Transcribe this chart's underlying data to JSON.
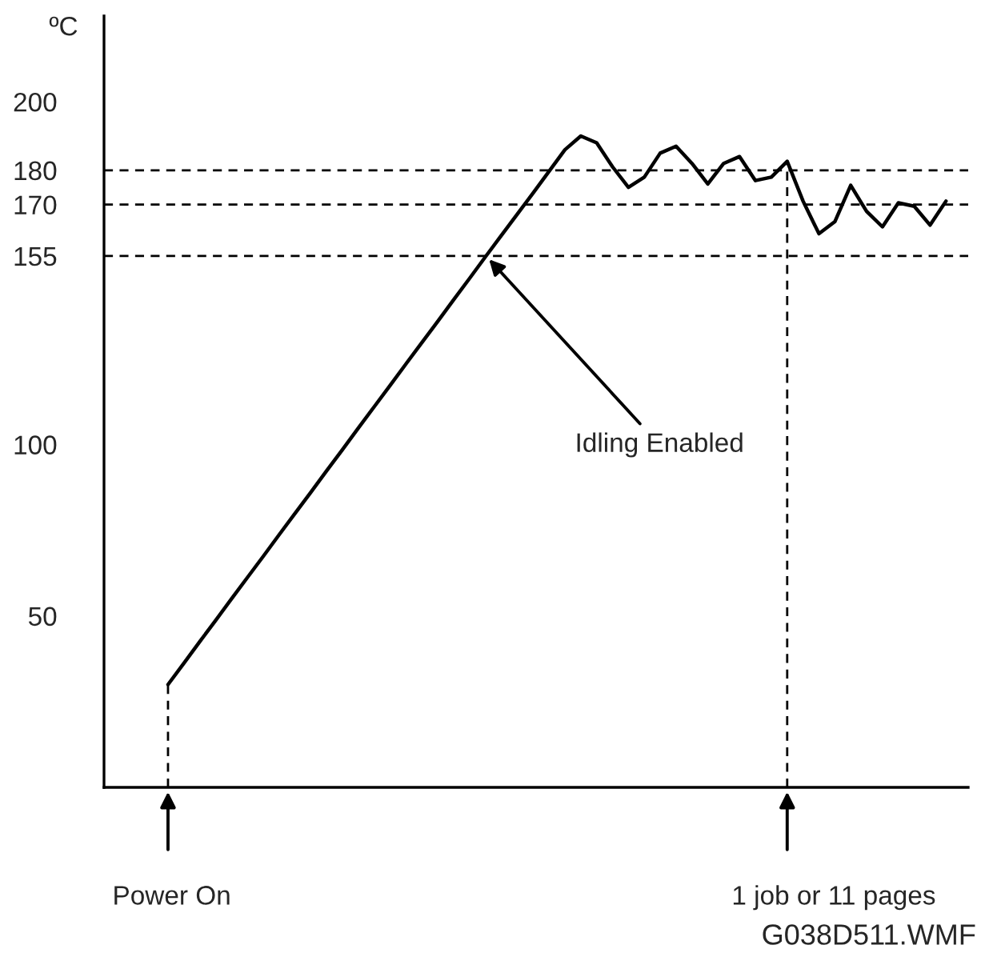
{
  "chart_data": {
    "type": "line",
    "ylabel": "ºC",
    "categories": [
      null,
      null,
      null,
      null,
      null,
      null,
      null,
      null,
      null,
      null,
      null,
      null,
      null,
      null,
      null,
      null,
      null,
      null,
      null,
      null,
      null,
      null,
      null,
      null,
      null,
      null,
      null,
      null,
      null,
      null,
      null,
      null,
      null,
      null,
      null,
      null,
      null,
      null,
      null,
      null,
      null,
      null,
      null,
      null,
      null,
      null,
      null,
      null,
      null,
      null
    ],
    "ylim": [
      0,
      225
    ],
    "yticks": [
      50,
      100,
      155,
      170,
      180,
      200
    ],
    "tick_labels": "y",
    "grid": false,
    "series": [
      {
        "color": "#000000",
        "values": [
          30,
          36.2,
          42.5,
          48.7,
          55,
          61.2,
          67.4,
          73.7,
          79.9,
          86.1,
          92.4,
          98.6,
          104.9,
          111.1,
          117.3,
          123.6,
          129.8,
          136,
          142.3,
          148.5,
          154.8,
          161,
          167.2,
          173.4,
          179.7,
          186,
          190,
          188,
          181,
          175,
          178,
          185,
          187,
          182,
          176,
          182,
          184,
          177,
          178,
          182.6,
          171,
          161.5,
          165,
          175.6,
          168,
          163.5,
          170.5,
          169.5,
          164,
          171
        ]
      }
    ],
    "ref_lines": [
      {
        "axis": "y",
        "value": 180,
        "line_style": "dashed",
        "color": "#000000"
      },
      {
        "axis": "y",
        "value": 170,
        "line_style": "dashed",
        "color": "#000000"
      },
      {
        "axis": "y",
        "value": 155,
        "line_style": "dashed",
        "color": "#000000"
      }
    ],
    "annotations": [
      "Idling Enabled",
      "Power On",
      "1 job or 11 pages",
      "G038D511.WMF"
    ]
  }
}
